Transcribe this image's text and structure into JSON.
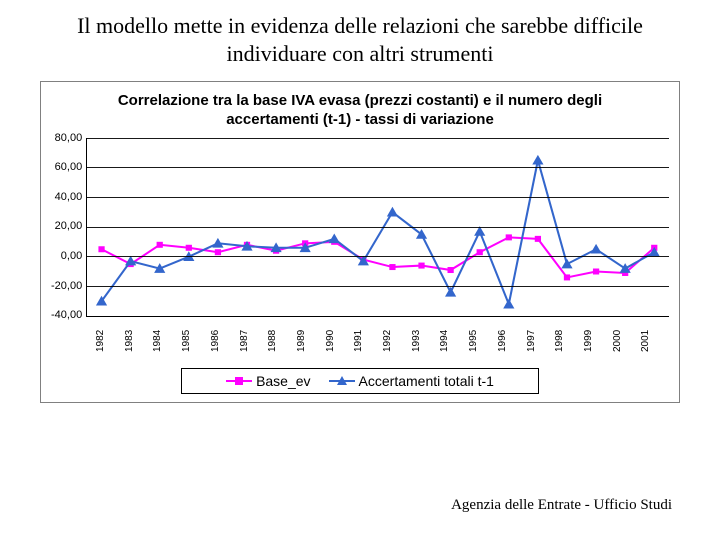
{
  "slide": {
    "title": "Il modello mette in evidenza delle relazioni che sarebbe difficile individuare con altri strumenti",
    "footer": "Agenzia delle Entrate - Ufficio Studi"
  },
  "chart": {
    "type": "line",
    "title": "Correlazione tra la base IVA evasa (prezzi costanti) e il numero degli accertamenti (t-1) - tassi di variazione",
    "title_fontsize": 15,
    "title_fontweight": "bold",
    "font_family": "Arial",
    "background_color": "#ffffff",
    "border_color": "#808080",
    "grid_color": "#000000",
    "axis_color": "#000000",
    "tick_fontsize": 11,
    "years": [
      "1982",
      "1983",
      "1984",
      "1985",
      "1986",
      "1987",
      "1988",
      "1989",
      "1990",
      "1991",
      "1992",
      "1993",
      "1994",
      "1995",
      "1996",
      "1997",
      "1998",
      "1999",
      "2000",
      "2001"
    ],
    "ylim": [
      -40,
      80
    ],
    "ytick_step": 20,
    "yticks": [
      "80,00",
      "60,00",
      "40,00",
      "20,00",
      "0,00",
      "-20,00",
      "-40,00"
    ],
    "series": [
      {
        "name": "Base_ev",
        "color": "#ff00ff",
        "marker": "square",
        "marker_size": 6,
        "line_width": 2,
        "values": [
          5,
          -5,
          8,
          6,
          3,
          8,
          4,
          9,
          10,
          -2,
          -7,
          -6,
          -9,
          3,
          13,
          12,
          -14,
          -10,
          -11,
          6
        ]
      },
      {
        "name": "Accertamenti totali t-1",
        "color": "#3366cc",
        "marker": "triangle",
        "marker_size": 7,
        "line_width": 2,
        "values": [
          -30,
          -3,
          -8,
          0,
          9,
          7,
          6,
          6,
          12,
          -3,
          30,
          15,
          -24,
          17,
          -32,
          65,
          -5,
          5,
          -8,
          3
        ]
      }
    ],
    "legend": {
      "position": "bottom",
      "border_color": "#000000",
      "background": "#ffffff",
      "items": [
        "Base_ev",
        "Accertamenti totali t-1"
      ]
    }
  }
}
